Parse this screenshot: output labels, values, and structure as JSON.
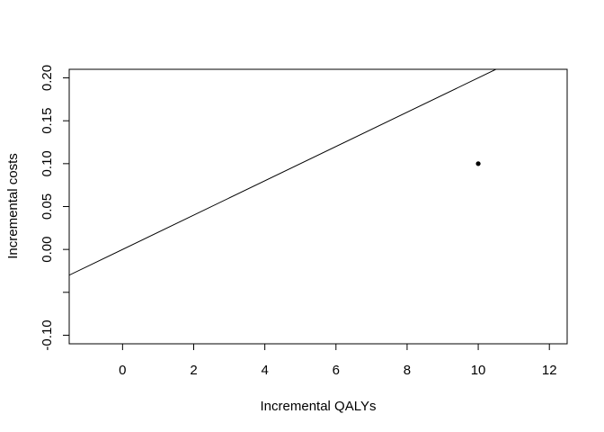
{
  "chart_data": {
    "type": "scatter",
    "xlabel": "Incremental QALYs",
    "ylabel": "Incremental costs",
    "xlim": [
      -1.5,
      12.5
    ],
    "ylim": [
      -0.11,
      0.21
    ],
    "xticks": [
      0,
      2,
      4,
      6,
      8,
      10,
      12
    ],
    "xtick_labels": [
      "0",
      "2",
      "4",
      "6",
      "8",
      "10",
      "12"
    ],
    "yticks": [
      -0.1,
      -0.05,
      0,
      0.05,
      0.1,
      0.15,
      0.2
    ],
    "ytick_labels": [
      "-0.10",
      "",
      "0.00",
      "0.05",
      "0.10",
      "0.15",
      "0.20"
    ],
    "points": [
      {
        "x": 10,
        "y": 0.1
      }
    ],
    "reference_line": {
      "intercept": 0,
      "slope": 0.02
    },
    "grid": false,
    "colors": {
      "line": "#000000",
      "point": "#000000",
      "axis": "#000000"
    }
  }
}
